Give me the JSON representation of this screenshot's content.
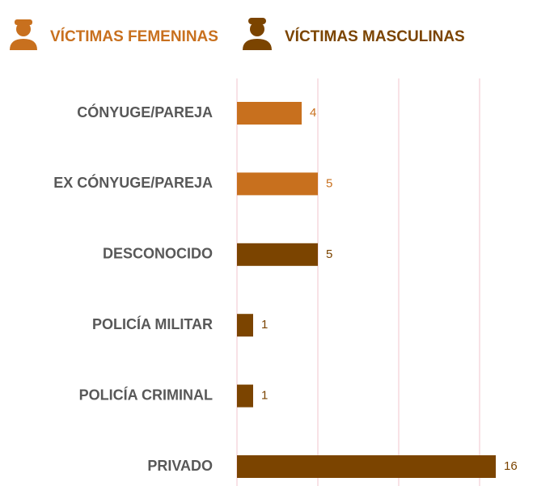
{
  "chart_data": {
    "type": "barh",
    "categories": [
      "CÓNYUGE/PAREJA",
      "EX CÓNYUGE/PAREJA",
      "DESCONOCIDO",
      "POLICÍA MILITAR",
      "POLICÍA CRIMINAL",
      "PRIVADO"
    ],
    "series": [
      {
        "name": "VÍCTIMAS FEMENINAS",
        "color": "#c8701e",
        "values": [
          4,
          5,
          null,
          null,
          null,
          null
        ]
      },
      {
        "name": "VÍCTIMAS MASCULINAS",
        "color": "#7b4400",
        "values": [
          null,
          null,
          5,
          1,
          1,
          16
        ]
      }
    ],
    "xlim": [
      0,
      16
    ],
    "xticks": [
      0,
      5,
      10,
      15
    ],
    "grid": true,
    "legend": "top"
  }
}
